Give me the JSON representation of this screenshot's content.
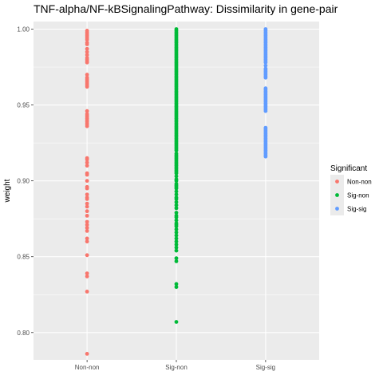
{
  "chart_data": {
    "type": "scatter",
    "title": "TNF-alpha/NF-kBSignalingPathway: Dissimilarity in gene-pair",
    "xlabel": "",
    "ylabel": "weight",
    "categories": [
      "Non-non",
      "Sig-non",
      "Sig-sig"
    ],
    "ylim": [
      0.782,
      1.005
    ],
    "yticks": [
      0.8,
      0.85,
      0.9,
      0.95,
      1.0
    ],
    "ytick_labels": [
      "0.80",
      "0.85",
      "0.90",
      "0.95",
      "1.00"
    ],
    "grid": true,
    "legend": {
      "title": "Significant",
      "placement": "right",
      "entries": [
        "Non-non",
        "Sig-non",
        "Sig-sig"
      ]
    },
    "colors": {
      "Non-non": "#F8766D",
      "Sig-non": "#00BA38",
      "Sig-sig": "#619CFF",
      "panel": "#EBEBEB",
      "grid": "#FFFFFF"
    },
    "series": [
      {
        "name": "Non-non",
        "x": "Non-non",
        "values": [
          0.999,
          0.998,
          0.997,
          0.996,
          0.995,
          0.994,
          0.993,
          0.991,
          0.99,
          0.987,
          0.985,
          0.983,
          0.981,
          0.98,
          0.979,
          0.978,
          0.97,
          0.968,
          0.967,
          0.966,
          0.965,
          0.964,
          0.963,
          0.962,
          0.946,
          0.944,
          0.943,
          0.942,
          0.941,
          0.94,
          0.939,
          0.938,
          0.937,
          0.936,
          0.915,
          0.914,
          0.912,
          0.91,
          0.905,
          0.904,
          0.9,
          0.896,
          0.895,
          0.891,
          0.889,
          0.888,
          0.885,
          0.883,
          0.88,
          0.877,
          0.873,
          0.871,
          0.869,
          0.867,
          0.862,
          0.86,
          0.851,
          0.839,
          0.837,
          0.827,
          0.786
        ]
      },
      {
        "name": "Sig-non",
        "x": "Sig-non",
        "values": [
          1.0,
          0.999,
          0.998,
          0.997,
          0.996,
          0.995,
          0.994,
          0.993,
          0.992,
          0.991,
          0.99,
          0.989,
          0.988,
          0.987,
          0.986,
          0.985,
          0.984,
          0.983,
          0.982,
          0.981,
          0.98,
          0.979,
          0.978,
          0.977,
          0.976,
          0.975,
          0.974,
          0.973,
          0.972,
          0.971,
          0.97,
          0.969,
          0.968,
          0.967,
          0.966,
          0.965,
          0.964,
          0.963,
          0.962,
          0.961,
          0.96,
          0.959,
          0.958,
          0.957,
          0.956,
          0.955,
          0.954,
          0.953,
          0.952,
          0.951,
          0.95,
          0.949,
          0.948,
          0.947,
          0.946,
          0.945,
          0.944,
          0.943,
          0.942,
          0.941,
          0.94,
          0.939,
          0.938,
          0.937,
          0.936,
          0.935,
          0.934,
          0.933,
          0.932,
          0.931,
          0.93,
          0.929,
          0.928,
          0.927,
          0.926,
          0.925,
          0.924,
          0.923,
          0.922,
          0.921,
          0.92,
          0.918,
          0.917,
          0.916,
          0.915,
          0.914,
          0.913,
          0.912,
          0.911,
          0.91,
          0.909,
          0.908,
          0.907,
          0.906,
          0.905,
          0.903,
          0.901,
          0.9,
          0.898,
          0.897,
          0.896,
          0.895,
          0.893,
          0.891,
          0.889,
          0.888,
          0.886,
          0.884,
          0.882,
          0.879,
          0.877,
          0.876,
          0.874,
          0.872,
          0.871,
          0.87,
          0.868,
          0.866,
          0.864,
          0.862,
          0.86,
          0.858,
          0.856,
          0.854,
          0.849,
          0.847,
          0.832,
          0.83,
          0.807
        ]
      },
      {
        "name": "Sig-sig",
        "x": "Sig-sig",
        "values": [
          1.0,
          0.999,
          0.998,
          0.997,
          0.996,
          0.995,
          0.994,
          0.993,
          0.992,
          0.991,
          0.99,
          0.989,
          0.988,
          0.987,
          0.986,
          0.985,
          0.984,
          0.983,
          0.982,
          0.981,
          0.98,
          0.979,
          0.978,
          0.976,
          0.974,
          0.973,
          0.972,
          0.971,
          0.97,
          0.969,
          0.968,
          0.961,
          0.96,
          0.959,
          0.958,
          0.957,
          0.956,
          0.955,
          0.954,
          0.953,
          0.952,
          0.951,
          0.95,
          0.949,
          0.948,
          0.947,
          0.946,
          0.935,
          0.934,
          0.933,
          0.932,
          0.931,
          0.93,
          0.929,
          0.928,
          0.927,
          0.926,
          0.925,
          0.924,
          0.923,
          0.922,
          0.921,
          0.92,
          0.919,
          0.918,
          0.917,
          0.916
        ]
      }
    ]
  }
}
